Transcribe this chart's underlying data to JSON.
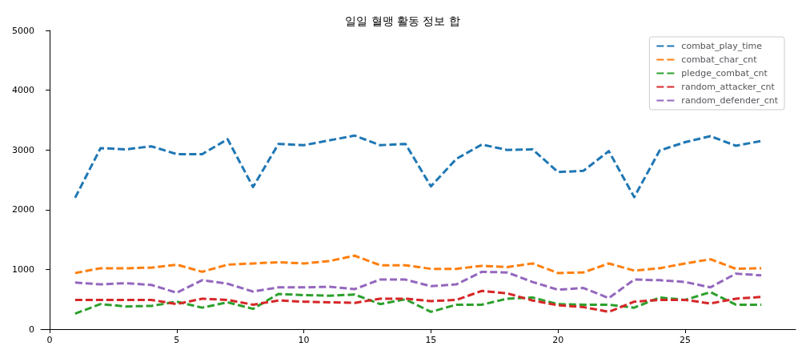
{
  "chart_data": {
    "type": "line",
    "title": "일일 혈맹 활동 정보 합",
    "x": [
      1,
      2,
      3,
      4,
      5,
      6,
      7,
      8,
      9,
      10,
      11,
      12,
      13,
      14,
      15,
      16,
      17,
      18,
      19,
      20,
      21,
      22,
      23,
      24,
      25,
      26,
      27,
      28
    ],
    "series": [
      {
        "name": "combat_play_time",
        "color": "#1f77b4",
        "values": [
          2200,
          3030,
          3010,
          3060,
          2930,
          2930,
          3180,
          2380,
          3100,
          3080,
          3160,
          3240,
          3080,
          3100,
          2390,
          2850,
          3090,
          3000,
          3010,
          2630,
          2650,
          2980,
          2210,
          2990,
          3130,
          3230,
          3070,
          3150
        ]
      },
      {
        "name": "combat_char_cnt",
        "color": "#ff7f0e",
        "values": [
          940,
          1020,
          1020,
          1030,
          1080,
          960,
          1080,
          1100,
          1120,
          1100,
          1140,
          1230,
          1070,
          1070,
          1010,
          1010,
          1060,
          1040,
          1100,
          940,
          950,
          1100,
          980,
          1020,
          1100,
          1170,
          1010,
          1020
        ]
      },
      {
        "name": "pledge_combat_cnt",
        "color": "#2ca02c",
        "values": [
          260,
          420,
          380,
          390,
          460,
          360,
          450,
          340,
          590,
          570,
          560,
          580,
          420,
          500,
          290,
          410,
          410,
          510,
          530,
          420,
          410,
          410,
          360,
          530,
          490,
          620,
          410,
          410
        ]
      },
      {
        "name": "random_attacker_cnt",
        "color": "#d62728",
        "values": [
          490,
          490,
          490,
          490,
          420,
          510,
          490,
          410,
          480,
          460,
          450,
          440,
          510,
          510,
          470,
          490,
          640,
          600,
          480,
          400,
          370,
          290,
          460,
          490,
          490,
          430,
          510,
          540
        ]
      },
      {
        "name": "random_defender_cnt",
        "color": "#9467bd",
        "values": [
          780,
          750,
          770,
          740,
          610,
          820,
          760,
          630,
          700,
          700,
          710,
          670,
          830,
          830,
          720,
          750,
          960,
          950,
          790,
          660,
          690,
          520,
          830,
          820,
          790,
          700,
          930,
          900
        ]
      }
    ],
    "xlim": [
      -0.35,
      29.35
    ],
    "xticks": [
      0,
      5,
      10,
      15,
      20,
      25
    ],
    "ylim": [
      0,
      5000
    ],
    "yticks": [
      0,
      1000,
      2000,
      3000,
      4000,
      5000
    ],
    "grid": false,
    "legend": "top right",
    "line_style": "dashed",
    "marker": "none"
  }
}
